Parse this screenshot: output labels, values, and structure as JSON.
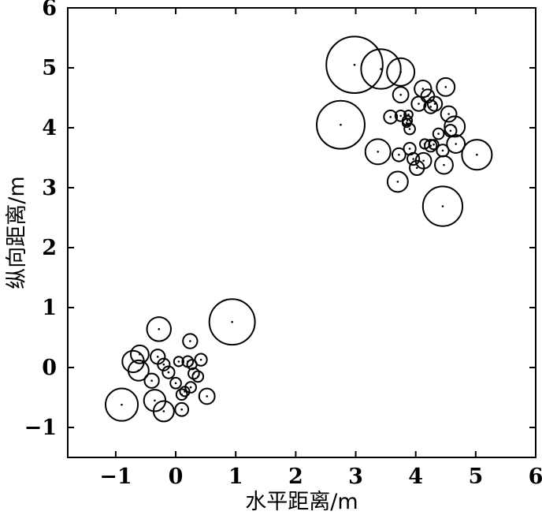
{
  "chart_data": {
    "type": "scatter",
    "title": "",
    "xlabel": "水平距离/m",
    "ylabel": "纵向距离/m",
    "xlim": [
      -1.8,
      6
    ],
    "ylim": [
      -1.5,
      6
    ],
    "xticks": [
      -1,
      0,
      1,
      2,
      3,
      4,
      5,
      6
    ],
    "yticks": [
      -1,
      0,
      1,
      2,
      3,
      4,
      5,
      6
    ],
    "xtick_labels": [
      "−1",
      "0",
      "1",
      "2",
      "3",
      "4",
      "5",
      "6"
    ],
    "ytick_labels": [
      "−1",
      "0",
      "1",
      "2",
      "3",
      "4",
      "5",
      "6"
    ],
    "grid": false,
    "marker": "center dot with circle, radius in data units",
    "colors": {
      "stroke": "#000000",
      "background": "#ffffff"
    },
    "series": [
      {
        "points": [
          {
            "x": -0.9,
            "y": -0.62,
            "r": 0.27
          },
          {
            "x": -0.71,
            "y": 0.1,
            "r": 0.18
          },
          {
            "x": -0.6,
            "y": 0.22,
            "r": 0.15
          },
          {
            "x": -0.62,
            "y": -0.05,
            "r": 0.17
          },
          {
            "x": -0.28,
            "y": 0.64,
            "r": 0.2
          },
          {
            "x": 0.94,
            "y": 0.76,
            "r": 0.38
          },
          {
            "x": -0.4,
            "y": -0.22,
            "r": 0.12
          },
          {
            "x": -0.35,
            "y": -0.55,
            "r": 0.18
          },
          {
            "x": -0.2,
            "y": -0.73,
            "r": 0.17
          },
          {
            "x": -0.3,
            "y": 0.18,
            "r": 0.12
          },
          {
            "x": -0.2,
            "y": 0.05,
            "r": 0.1
          },
          {
            "x": -0.12,
            "y": -0.08,
            "r": 0.1
          },
          {
            "x": 0.0,
            "y": -0.26,
            "r": 0.09
          },
          {
            "x": 0.1,
            "y": -0.45,
            "r": 0.09
          },
          {
            "x": 0.1,
            "y": -0.7,
            "r": 0.11
          },
          {
            "x": 0.15,
            "y": -0.4,
            "r": 0.08
          },
          {
            "x": 0.05,
            "y": 0.1,
            "r": 0.08
          },
          {
            "x": 0.2,
            "y": 0.1,
            "r": 0.09
          },
          {
            "x": 0.24,
            "y": 0.44,
            "r": 0.12
          },
          {
            "x": 0.27,
            "y": 0.05,
            "r": 0.08
          },
          {
            "x": 0.3,
            "y": -0.1,
            "r": 0.09
          },
          {
            "x": 0.25,
            "y": -0.33,
            "r": 0.09
          },
          {
            "x": 0.37,
            "y": -0.15,
            "r": 0.09
          },
          {
            "x": 0.42,
            "y": 0.13,
            "r": 0.1
          },
          {
            "x": 0.52,
            "y": -0.48,
            "r": 0.13
          },
          {
            "x": 2.98,
            "y": 5.05,
            "r": 0.47
          },
          {
            "x": 3.42,
            "y": 4.98,
            "r": 0.33
          },
          {
            "x": 3.75,
            "y": 4.93,
            "r": 0.23
          },
          {
            "x": 2.75,
            "y": 4.05,
            "r": 0.4
          },
          {
            "x": 3.37,
            "y": 3.6,
            "r": 0.21
          },
          {
            "x": 3.75,
            "y": 4.55,
            "r": 0.13
          },
          {
            "x": 3.58,
            "y": 4.18,
            "r": 0.11
          },
          {
            "x": 3.75,
            "y": 4.2,
            "r": 0.09
          },
          {
            "x": 3.86,
            "y": 4.12,
            "r": 0.08
          },
          {
            "x": 3.9,
            "y": 3.98,
            "r": 0.09
          },
          {
            "x": 3.7,
            "y": 3.1,
            "r": 0.17
          },
          {
            "x": 3.72,
            "y": 3.55,
            "r": 0.11
          },
          {
            "x": 3.9,
            "y": 3.65,
            "r": 0.1
          },
          {
            "x": 3.96,
            "y": 3.48,
            "r": 0.1
          },
          {
            "x": 4.02,
            "y": 3.33,
            "r": 0.12
          },
          {
            "x": 4.13,
            "y": 3.45,
            "r": 0.13
          },
          {
            "x": 4.15,
            "y": 3.73,
            "r": 0.08
          },
          {
            "x": 4.25,
            "y": 3.7,
            "r": 0.1
          },
          {
            "x": 4.3,
            "y": 3.72,
            "r": 0.08
          },
          {
            "x": 4.38,
            "y": 3.9,
            "r": 0.09
          },
          {
            "x": 4.45,
            "y": 3.62,
            "r": 0.1
          },
          {
            "x": 4.47,
            "y": 3.38,
            "r": 0.15
          },
          {
            "x": 4.58,
            "y": 3.95,
            "r": 0.1
          },
          {
            "x": 4.65,
            "y": 4.02,
            "r": 0.17
          },
          {
            "x": 4.67,
            "y": 3.73,
            "r": 0.15
          },
          {
            "x": 5.02,
            "y": 3.55,
            "r": 0.25
          },
          {
            "x": 4.45,
            "y": 2.69,
            "r": 0.33
          },
          {
            "x": 4.05,
            "y": 4.4,
            "r": 0.12
          },
          {
            "x": 4.12,
            "y": 4.65,
            "r": 0.14
          },
          {
            "x": 4.2,
            "y": 4.53,
            "r": 0.11
          },
          {
            "x": 4.25,
            "y": 4.35,
            "r": 0.11
          },
          {
            "x": 4.32,
            "y": 4.4,
            "r": 0.12
          },
          {
            "x": 4.5,
            "y": 4.68,
            "r": 0.15
          },
          {
            "x": 4.55,
            "y": 4.23,
            "r": 0.13
          },
          {
            "x": 3.88,
            "y": 4.22,
            "r": 0.07
          },
          {
            "x": 3.85,
            "y": 4.08,
            "r": 0.07
          }
        ]
      }
    ]
  }
}
